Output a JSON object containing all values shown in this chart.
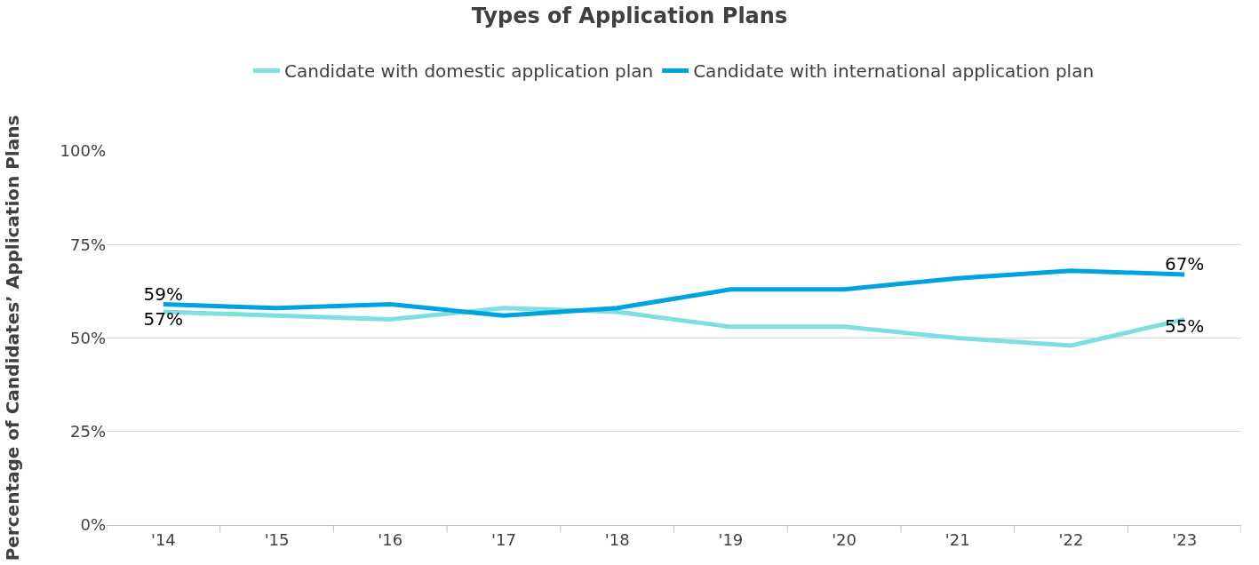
{
  "chart_data": {
    "type": "line",
    "title": "Types of Application Plans",
    "ylabel": "Percentage of Candidates’ Application Plans",
    "categories": [
      "'14",
      "'15",
      "'16",
      "'17",
      "'18",
      "'19",
      "'20",
      "'21",
      "'22",
      "'23"
    ],
    "series": [
      {
        "name": "Candidate with domestic application plan",
        "color": "#7fdfe0",
        "values": [
          57,
          56,
          55,
          58,
          57,
          53,
          53,
          50,
          48,
          55
        ],
        "value_labels": [
          "57%",
          null,
          null,
          null,
          null,
          null,
          null,
          null,
          null,
          "55%"
        ]
      },
      {
        "name": "Candidate with international application plan",
        "color": "#00a3e0",
        "values": [
          59,
          58,
          59,
          56,
          58,
          63,
          63,
          66,
          68,
          67
        ],
        "value_labels": [
          "59%",
          null,
          null,
          null,
          null,
          null,
          null,
          null,
          null,
          "67%"
        ]
      }
    ],
    "ylim": [
      0,
      100
    ],
    "yticks": [
      {
        "value": 0,
        "label": "0%"
      },
      {
        "value": 25,
        "label": "25%"
      },
      {
        "value": 50,
        "label": "50%"
      },
      {
        "value": 75,
        "label": "75%"
      },
      {
        "value": 100,
        "label": "100%"
      }
    ],
    "grid": "y",
    "legend": "top",
    "marker": "none",
    "line_style": "solid"
  }
}
